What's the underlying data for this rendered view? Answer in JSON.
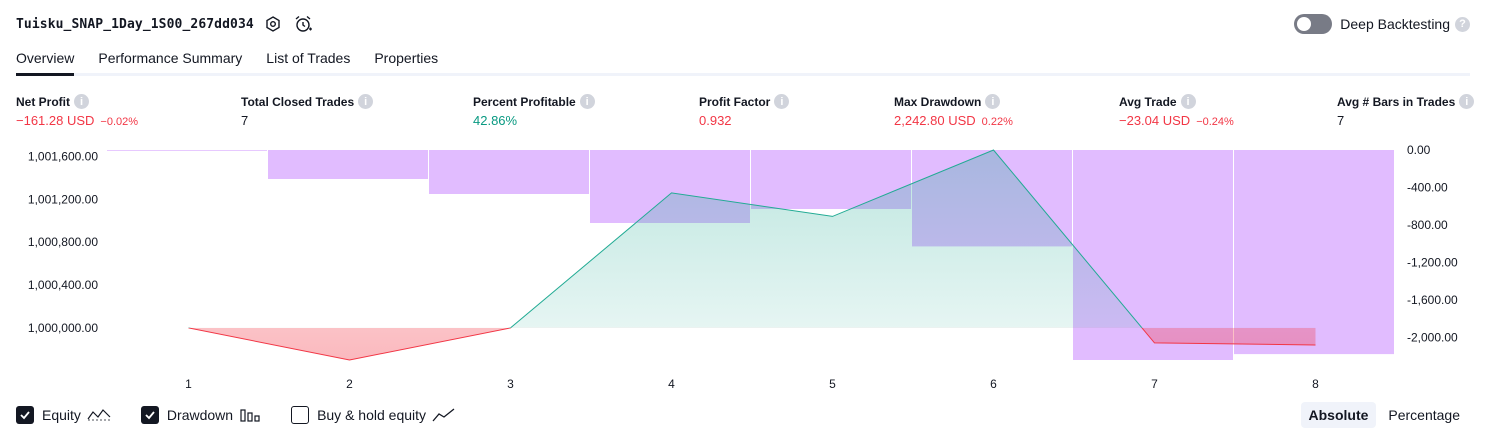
{
  "header": {
    "title": "Tuisku_SNAP_1Day_1S00_267dd034",
    "icons": [
      "settings-icon",
      "alarm-clock-icon"
    ]
  },
  "deep_backtesting": {
    "label": "Deep Backtesting",
    "help": "?"
  },
  "tabs": [
    {
      "label": "Overview",
      "active": true
    },
    {
      "label": "Performance Summary",
      "active": false
    },
    {
      "label": "List of Trades",
      "active": false
    },
    {
      "label": "Properties",
      "active": false
    }
  ],
  "stats": [
    {
      "label": "Net Profit",
      "value": "−161.28 USD",
      "sub": "−0.02%",
      "tone": "neg"
    },
    {
      "label": "Total Closed Trades",
      "value": "7",
      "sub": "",
      "tone": "neutral"
    },
    {
      "label": "Percent Profitable",
      "value": "42.86%",
      "sub": "",
      "tone": "pos"
    },
    {
      "label": "Profit Factor",
      "value": "0.932",
      "sub": "",
      "tone": "neg"
    },
    {
      "label": "Max Drawdown",
      "value": "2,242.80 USD",
      "sub": "0.22%",
      "tone": "neg"
    },
    {
      "label": "Avg Trade",
      "value": "−23.04 USD",
      "sub": "−0.24%",
      "tone": "neg"
    },
    {
      "label": "Avg # Bars in Trades",
      "value": "7",
      "sub": "",
      "tone": "neutral"
    }
  ],
  "chart_data": {
    "type": "line",
    "x": [
      1,
      2,
      3,
      4,
      5,
      6,
      7,
      8
    ],
    "x_tick_labels": [
      "1",
      "2",
      "3",
      "4",
      "5",
      "6",
      "7",
      "8"
    ],
    "baseline": 1000000,
    "y_left": {
      "ticks": [
        1000000,
        1000400,
        1000800,
        1001200,
        1001600
      ],
      "tick_labels": [
        "1,000,000.00",
        "1,000,400.00",
        "1,000,800.00",
        "1,001,200.00",
        "1,001,600.00"
      ],
      "range": [
        999700,
        1001660
      ]
    },
    "y_right": {
      "ticks": [
        0,
        -400,
        -800,
        -1200,
        -1600,
        -2000
      ],
      "tick_labels": [
        "0.00",
        "-400.00",
        "-800.00",
        "-1,200.00",
        "-1,600.00",
        "-2,000.00"
      ],
      "range": [
        -2242.8,
        0
      ]
    },
    "series": [
      {
        "type": "line",
        "values": [
          1000000,
          999700,
          1000000,
          1001260,
          1001040,
          1001660,
          999860,
          999840
        ],
        "color_up": "#22ab94",
        "color_down": "#f23645"
      },
      {
        "type": "bar",
        "values": [
          0,
          -310,
          -470,
          -780,
          -630,
          -1030,
          -2242.8,
          -2180
        ],
        "color": "#e1bcff"
      }
    ],
    "grid": false
  },
  "legend": [
    {
      "label": "Equity",
      "checked": true,
      "icon": "equity-line-icon"
    },
    {
      "label": "Drawdown",
      "checked": true,
      "icon": "drawdown-bars-icon"
    },
    {
      "label": "Buy & hold equity",
      "checked": false,
      "icon": "buy-hold-line-icon"
    }
  ],
  "modes": [
    {
      "label": "Absolute",
      "active": true
    },
    {
      "label": "Percentage",
      "active": false
    }
  ]
}
